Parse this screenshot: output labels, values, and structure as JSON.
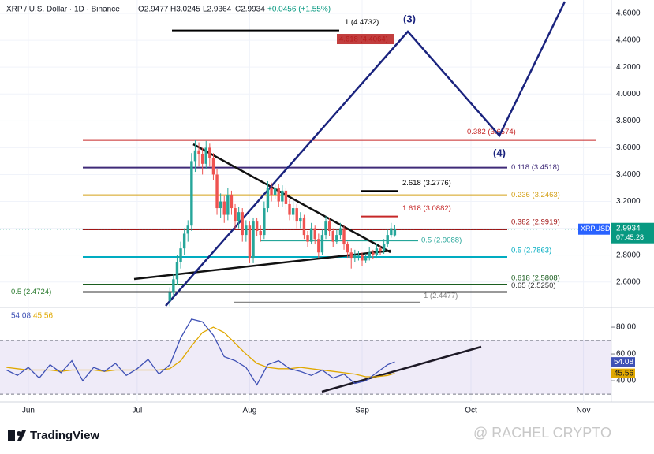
{
  "chart_data": {
    "type": "candlestick",
    "title": "XRP / U.S. Dollar · 1D · Binance",
    "ohlc": [
      "O2.9477",
      "H3.0245",
      "L2.9364",
      "C2.9934"
    ],
    "change": "+0.0456 (+1.55%)",
    "xlim": [
      -7.8,
      160.7
    ],
    "xticks": [
      {
        "value": 0,
        "label": "Jun"
      },
      {
        "value": 30,
        "label": "Jul"
      },
      {
        "value": 61,
        "label": "Aug"
      },
      {
        "value": 92,
        "label": "Sep"
      },
      {
        "value": 122,
        "label": "Oct"
      },
      {
        "value": 153,
        "label": "Nov"
      }
    ],
    "ylim": [
      2.44,
      4.7
    ],
    "yticks": [
      {
        "value": 4.6,
        "label": "4.6000"
      },
      {
        "value": 4.4,
        "label": "4.4000"
      },
      {
        "value": 4.2,
        "label": "4.2000"
      },
      {
        "value": 4.0,
        "label": "4.0000"
      },
      {
        "value": 3.8,
        "label": "3.8000"
      },
      {
        "value": 3.6,
        "label": "3.6000"
      },
      {
        "value": 3.4,
        "label": "3.4000"
      },
      {
        "value": 3.2,
        "label": "3.2000"
      },
      {
        "value": 3.0,
        "label": "3.0000"
      },
      {
        "value": 2.8,
        "label": "2.8000"
      },
      {
        "value": 2.6,
        "label": "2.6000"
      }
    ],
    "grid": true,
    "up_color": "#26a69a",
    "down_color": "#ef5350",
    "candles": {
      "x": [
        39,
        40,
        41,
        42,
        43,
        44,
        45,
        46,
        47,
        48,
        49,
        50,
        51,
        52,
        53,
        54,
        55,
        56,
        57,
        58,
        59,
        60,
        61,
        62,
        63,
        64,
        65,
        66,
        67,
        68,
        69,
        70,
        71,
        72,
        73,
        74,
        75,
        76,
        77,
        78,
        79,
        80,
        81,
        82,
        83,
        84,
        85,
        86,
        87,
        88,
        89,
        90,
        91,
        92,
        93,
        94,
        95,
        96,
        97,
        98,
        99,
        100,
        101
      ],
      "open": [
        2.46,
        2.52,
        2.62,
        2.75,
        2.85,
        2.96,
        3.02,
        3.5,
        3.58,
        3.55,
        3.48,
        3.6,
        3.52,
        3.4,
        3.15,
        3.2,
        3.1,
        3.25,
        3.15,
        3.05,
        3.12,
        2.95,
        3.02,
        2.78,
        3.05,
        2.98,
        2.95,
        3.15,
        3.3,
        3.25,
        3.3,
        3.2,
        3.28,
        3.18,
        3.1,
        3.15,
        3.05,
        3.08,
        2.95,
        2.9,
        3.0,
        2.92,
        2.82,
        2.95,
        3.05,
        2.98,
        2.9,
        2.95,
        3.0,
        2.88,
        2.82,
        2.78,
        2.8,
        2.8,
        2.76,
        2.78,
        2.82,
        2.8,
        2.85,
        2.83,
        2.88,
        2.95,
        2.9477
      ],
      "high": [
        2.56,
        2.66,
        2.8,
        2.9,
        3.0,
        3.06,
        3.56,
        3.66,
        3.64,
        3.6,
        3.65,
        3.63,
        3.56,
        3.44,
        3.26,
        3.24,
        3.3,
        3.28,
        3.18,
        3.16,
        3.15,
        3.06,
        3.05,
        3.08,
        3.08,
        3.02,
        3.2,
        3.35,
        3.34,
        3.36,
        3.33,
        3.32,
        3.3,
        3.22,
        3.2,
        3.18,
        3.12,
        3.1,
        2.98,
        3.04,
        3.02,
        2.96,
        2.99,
        3.09,
        3.08,
        3.0,
        2.99,
        3.04,
        3.02,
        2.9,
        2.85,
        2.84,
        2.83,
        2.82,
        2.81,
        2.86,
        2.84,
        2.88,
        2.87,
        2.92,
        2.99,
        3.04,
        3.0245
      ],
      "low": [
        2.42,
        2.49,
        2.58,
        2.7,
        2.8,
        2.9,
        2.98,
        3.42,
        3.46,
        3.4,
        3.44,
        3.46,
        3.36,
        3.1,
        3.08,
        3.04,
        3.06,
        3.1,
        3.0,
        3.0,
        2.9,
        2.9,
        2.74,
        2.74,
        2.94,
        2.9,
        2.92,
        3.12,
        3.2,
        3.22,
        3.16,
        3.16,
        3.14,
        3.06,
        3.06,
        3.0,
        3.0,
        2.92,
        2.86,
        2.88,
        2.88,
        2.78,
        2.8,
        2.92,
        2.94,
        2.86,
        2.88,
        2.92,
        2.84,
        2.78,
        2.7,
        2.75,
        2.76,
        2.72,
        2.74,
        2.76,
        2.77,
        2.78,
        2.8,
        2.81,
        2.86,
        2.93,
        2.9364
      ],
      "close": [
        2.52,
        2.62,
        2.75,
        2.85,
        2.96,
        3.02,
        3.5,
        3.58,
        3.55,
        3.48,
        3.6,
        3.52,
        3.4,
        3.15,
        3.2,
        3.1,
        3.25,
        3.15,
        3.05,
        3.12,
        2.95,
        3.02,
        2.78,
        3.05,
        2.98,
        2.95,
        3.15,
        3.3,
        3.25,
        3.3,
        3.2,
        3.28,
        3.18,
        3.1,
        3.15,
        3.05,
        3.08,
        2.95,
        2.9,
        3.0,
        2.92,
        2.82,
        2.95,
        3.05,
        2.98,
        2.9,
        2.95,
        3.0,
        2.88,
        2.82,
        2.78,
        2.8,
        2.8,
        2.76,
        2.78,
        2.82,
        2.8,
        2.85,
        2.83,
        2.88,
        2.95,
        3.0,
        2.9934
      ]
    },
    "last_price": 2.9934,
    "symbol_tag": "XRPUSD",
    "countdown": "07:45:28",
    "levels": [
      {
        "label": "1 (4.4732)",
        "value": 4.4732,
        "color": "#000000"
      },
      {
        "label": "4.618 (4.4064)",
        "value": 4.4064,
        "color": "#b71c1c"
      },
      {
        "label": "0.382 (3.6574)",
        "value": 3.6574,
        "color": "#c62828"
      },
      {
        "label": "0.118 (3.4518)",
        "value": 3.4518,
        "color": "#3f2a78"
      },
      {
        "label": "0.236 (3.2463)",
        "value": 3.2463,
        "color": "#d4a017"
      },
      {
        "label": "2.618 (3.2776)",
        "value": 3.2776,
        "color": "#000000"
      },
      {
        "label": "1.618 (3.0882)",
        "value": 3.0882,
        "color": "#c62828"
      },
      {
        "label": "0.382 (2.9919)",
        "value": 2.9919,
        "color": "#a31515"
      },
      {
        "label": "0.5 (2.9088)",
        "value": 2.9088,
        "color": "#26a69a"
      },
      {
        "label": "0.5 (2.7863)",
        "value": 2.7863,
        "color": "#00acc1"
      },
      {
        "label": "0.618 (2.5808)",
        "value": 2.5808,
        "color": "#1b5e20"
      },
      {
        "label": "0.65 (2.5250)",
        "value": 2.525,
        "color": "#333333"
      },
      {
        "label": "1 (2.4477)",
        "value": 2.4477,
        "color": "#888888"
      },
      {
        "label": "0.5 (2.4724)",
        "value": 2.4724,
        "color": "#2e7d32"
      }
    ],
    "waves": [
      "(3)",
      "(4)"
    ],
    "rsi": {
      "ylim": [
        27.1,
        91.8
      ],
      "yticks": [
        {
          "value": 80,
          "label": "80.00"
        },
        {
          "value": 60,
          "label": "60.00"
        },
        {
          "value": 40,
          "label": "40.00"
        }
      ],
      "band": [
        30,
        70
      ],
      "x": [
        -6,
        -3,
        0,
        3,
        6,
        9,
        12,
        15,
        18,
        21,
        24,
        27,
        30,
        33,
        36,
        39,
        42,
        45,
        48,
        51,
        54,
        57,
        60,
        63,
        66,
        69,
        72,
        75,
        78,
        81,
        84,
        87,
        90,
        93,
        96,
        99,
        101
      ],
      "values": [
        48,
        44,
        50,
        42,
        52,
        46,
        55,
        40,
        50,
        47,
        53,
        44,
        49,
        56,
        45,
        52,
        72,
        86,
        84,
        74,
        58,
        55,
        50,
        37,
        52,
        55,
        49,
        47,
        44,
        48,
        42,
        45,
        38,
        40,
        46,
        52,
        54.08
      ],
      "color": "#3f51b5",
      "ma_values": [
        50,
        49,
        48,
        48,
        48,
        47,
        48,
        48,
        48,
        47,
        48,
        48,
        48,
        48,
        48,
        49,
        55,
        66,
        76,
        80,
        76,
        68,
        60,
        53,
        50,
        49,
        49,
        50,
        49,
        48,
        47,
        46,
        45,
        43,
        43,
        44,
        45.56
      ],
      "ma_color": "#e0a800"
    },
    "brand": "TradingView",
    "watermark": "@ RACHEL CRYPTO"
  }
}
